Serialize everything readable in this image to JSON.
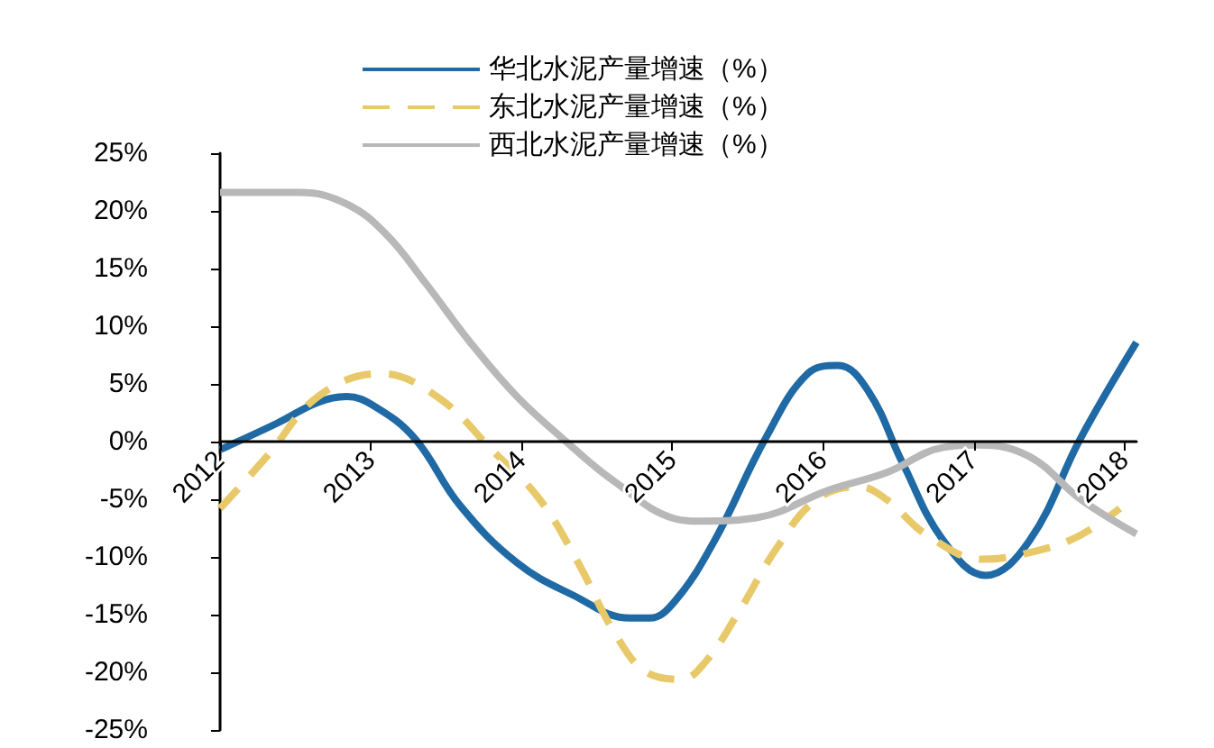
{
  "chart_data": {
    "type": "line",
    "xlim": [
      2012,
      2018.08
    ],
    "xticks": [
      2012,
      2013,
      2014,
      2015,
      2016,
      2017,
      2018
    ],
    "ylim": [
      -25,
      25
    ],
    "yticks": [
      {
        "value": -25,
        "label": "-25%"
      },
      {
        "value": -20,
        "label": "-20%"
      },
      {
        "value": -15,
        "label": "-15%"
      },
      {
        "value": -10,
        "label": "-10%"
      },
      {
        "value": -5,
        "label": "-5%"
      },
      {
        "value": 0,
        "label": "0%"
      },
      {
        "value": 5,
        "label": "5%"
      },
      {
        "value": 10,
        "label": "10%"
      },
      {
        "value": 15,
        "label": "15%"
      },
      {
        "value": 20,
        "label": "20%"
      },
      {
        "value": 25,
        "label": "25%"
      }
    ],
    "legend": "top",
    "grid": false,
    "marker": "none",
    "series": [
      {
        "name": "华北水泥产量增速（%）",
        "color": "#1f6aa5",
        "line_style": "solid",
        "x": [
          2012.0,
          2012.38,
          2012.65,
          2012.84,
          2013.02,
          2013.29,
          2013.59,
          2013.97,
          2014.34,
          2014.72,
          2014.85,
          2015.02,
          2015.28,
          2015.62,
          2015.9,
          2016.1,
          2016.3,
          2016.53,
          2016.8,
          2017.08,
          2017.37,
          2017.71,
          2018.08
        ],
        "values": [
          -0.7,
          1.6,
          3.4,
          3.9,
          3.1,
          0.3,
          -5.5,
          -10.5,
          -13.3,
          -15.3,
          -15.3,
          -13.8,
          -8.6,
          0.3,
          5.9,
          6.6,
          4.4,
          -1.9,
          -8.6,
          -11.6,
          -8.6,
          0.3,
          8.6
        ]
      },
      {
        "name": "东北水泥产量增速（%）",
        "color": "#e8c96a",
        "line_style": "dashed",
        "x": [
          2012.0,
          2012.31,
          2012.65,
          2013.06,
          2013.44,
          2013.81,
          2014.12,
          2014.38,
          2014.61,
          2014.83,
          2015.06,
          2015.22,
          2015.44,
          2015.7,
          2015.96,
          2016.24,
          2016.42,
          2016.69,
          2017.06,
          2017.44,
          2017.71,
          2017.97
        ],
        "values": [
          -5.8,
          -1.3,
          3.9,
          5.9,
          3.9,
          -0.8,
          -5.0,
          -10.6,
          -16.4,
          -20.0,
          -20.6,
          -19.1,
          -14.8,
          -9.1,
          -5.0,
          -3.9,
          -5.0,
          -8.1,
          -10.2,
          -9.4,
          -8.1,
          -5.8
        ]
      },
      {
        "name": "西北水泥产量增速（%）",
        "color": "#b8b8b8",
        "line_style": "solid",
        "x": [
          2012.0,
          2012.53,
          2012.84,
          2013.1,
          2013.36,
          2013.66,
          2013.97,
          2014.27,
          2014.61,
          2015.02,
          2015.17,
          2015.56,
          2016.04,
          2016.42,
          2016.8,
          2017.03,
          2017.37,
          2017.71,
          2018.08
        ],
        "values": [
          21.6,
          21.6,
          20.6,
          18.0,
          13.8,
          8.6,
          3.9,
          0.3,
          -3.4,
          -6.7,
          -6.9,
          -6.6,
          -4.2,
          -2.7,
          -0.5,
          -0.3,
          -1.3,
          -5.0,
          -8.0
        ]
      }
    ]
  }
}
